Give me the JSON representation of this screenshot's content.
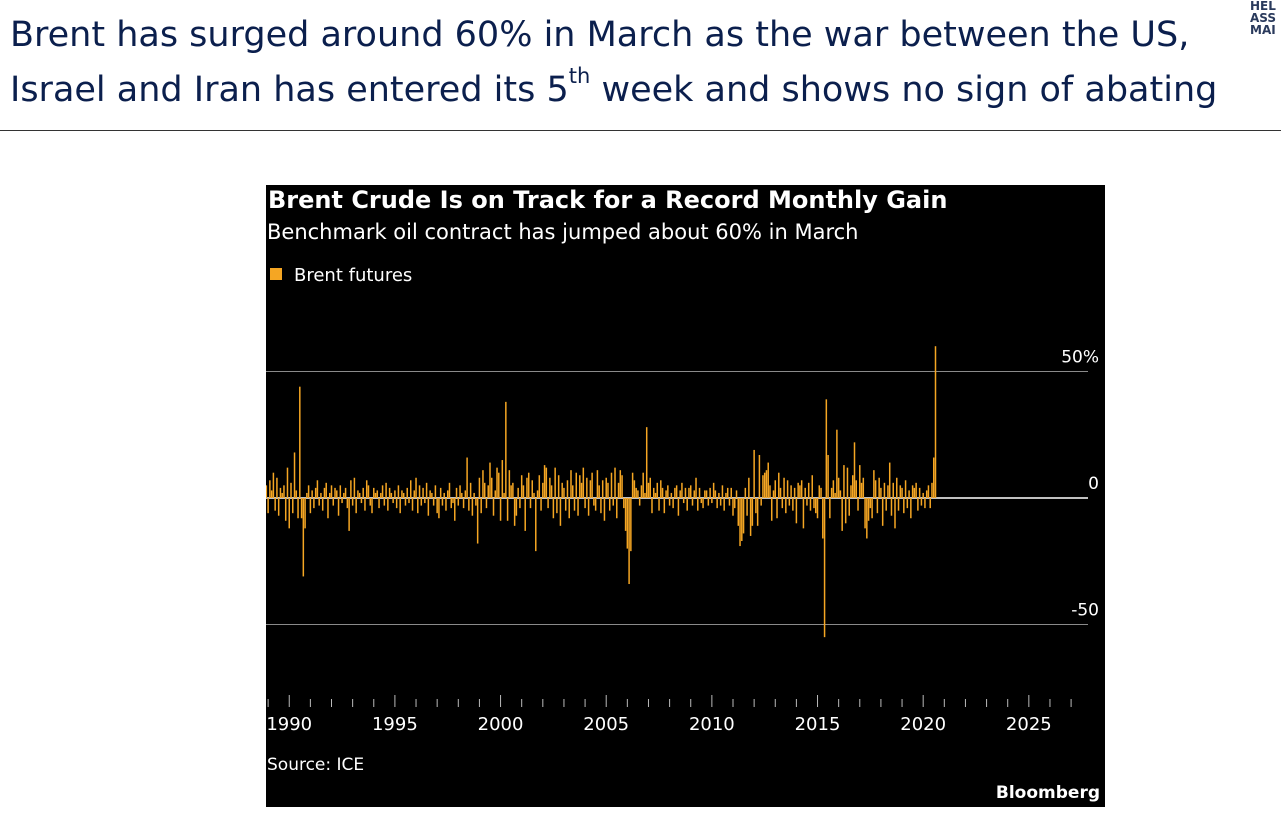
{
  "headline": {
    "line1": "Brent has surged around 60% in March as the war between the US,",
    "line2_pre": "Israel and Iran has entered its 5",
    "line2_sup": "th",
    "line2_post": " week and shows no sign of abating"
  },
  "logo": {
    "lines": [
      "HEL",
      "ASS",
      "MAI"
    ]
  },
  "colors": {
    "bars": "#f5a623",
    "background": "#000000",
    "text": "#ffffff",
    "headline": "#0b1f4d"
  },
  "chart_data": {
    "type": "bar",
    "title": "Brent Crude Is on Track for a Record Monthly Gain",
    "subtitle": "Benchmark oil contract has jumped about 60% in March",
    "legend": "Brent futures",
    "source": "Source: ICE",
    "brand": "Bloomberg",
    "ylabel": "",
    "xlabel": "",
    "ylim": [
      -80,
      60
    ],
    "xlim": [
      1988.9,
      2027.8
    ],
    "y_ticks": [
      {
        "value": 50,
        "label": "50%"
      },
      {
        "value": 0,
        "label": "0"
      },
      {
        "value": -50,
        "label": "-50"
      }
    ],
    "x_ticks": [
      "1990",
      "1995",
      "2000",
      "2005",
      "2010",
      "2015",
      "2020",
      "2025"
    ],
    "grid": true,
    "legend_position": "top-left",
    "series": [
      {
        "name": "Brent futures",
        "x_start": 1988.75,
        "x_step": 0.0833333,
        "values": [
          -16,
          9,
          5,
          -6,
          7,
          3,
          10,
          -5,
          8,
          -7,
          4,
          2,
          5,
          -9,
          12,
          -12,
          6,
          -6,
          18,
          3,
          -8,
          44,
          -8,
          -31,
          -12,
          2,
          5,
          -6,
          3,
          -4,
          4,
          7,
          -3,
          2,
          -5,
          4,
          6,
          -8,
          2,
          5,
          -3,
          4,
          3,
          -7,
          5,
          -2,
          2,
          4,
          -4,
          -13,
          7,
          -3,
          8,
          -6,
          3,
          2,
          -2,
          4,
          -5,
          7,
          5,
          -3,
          -6,
          4,
          2,
          3,
          -4,
          2,
          5,
          -3,
          6,
          -5,
          4,
          2,
          -2,
          3,
          -4,
          5,
          -6,
          3,
          2,
          -3,
          4,
          -2,
          7,
          -5,
          3,
          8,
          -6,
          5,
          -3,
          4,
          -2,
          6,
          -7,
          3,
          2,
          -3,
          5,
          -6,
          -8,
          4,
          -3,
          2,
          -5,
          3,
          6,
          -4,
          -2,
          -9,
          4,
          -3,
          5,
          2,
          -4,
          3,
          16,
          -5,
          6,
          -7,
          2,
          -3,
          -18,
          8,
          -6,
          11,
          6,
          -4,
          5,
          14,
          8,
          -7,
          3,
          12,
          10,
          -9,
          15,
          2,
          38,
          -9,
          11,
          5,
          6,
          -11,
          -7,
          4,
          -4,
          9,
          5,
          -13,
          8,
          10,
          -4,
          7,
          2,
          -21,
          3,
          9,
          -5,
          6,
          13,
          12,
          -4,
          8,
          5,
          -8,
          12,
          -6,
          9,
          -11,
          6,
          4,
          -5,
          7,
          -8,
          11,
          5,
          -5,
          10,
          -7,
          9,
          6,
          12,
          -4,
          8,
          -7,
          7,
          10,
          -3,
          -5,
          11,
          5,
          -6,
          7,
          -9,
          8,
          6,
          -5,
          10,
          -3,
          12,
          -8,
          6,
          11,
          9,
          -4,
          -13,
          -20,
          -34,
          -21,
          10,
          7,
          4,
          3,
          -3,
          5,
          10,
          2,
          28,
          6,
          8,
          -6,
          4,
          2,
          6,
          -5,
          7,
          4,
          -6,
          3,
          5,
          -3,
          2,
          -4,
          4,
          5,
          -7,
          3,
          6,
          -2,
          4,
          -5,
          4,
          5,
          -3,
          3,
          8,
          -5,
          4,
          -2,
          -4,
          3,
          3,
          -3,
          4,
          -2,
          6,
          3,
          -4,
          2,
          -3,
          5,
          -5,
          2,
          4,
          -3,
          4,
          -7,
          -4,
          3,
          -11,
          -19,
          -17,
          -14,
          4,
          -7,
          8,
          -15,
          -11,
          19,
          -6,
          -11,
          17,
          -3,
          9,
          10,
          11,
          14,
          5,
          -9,
          3,
          7,
          -8,
          10,
          4,
          -4,
          8,
          -6,
          7,
          -3,
          5,
          -5,
          4,
          -10,
          6,
          5,
          7,
          -12,
          4,
          -3,
          6,
          -5,
          9,
          -4,
          -6,
          -8,
          5,
          4,
          -16,
          -55,
          39,
          17,
          -8,
          4,
          7,
          2,
          27,
          8,
          3,
          -13,
          13,
          -10,
          12,
          -7,
          5,
          9,
          22,
          7,
          -5,
          13,
          6,
          8,
          -12,
          -16,
          -9,
          -4,
          -8,
          11,
          7,
          -6,
          8,
          4,
          -11,
          6,
          -5,
          5,
          14,
          -7,
          6,
          -12,
          8,
          -5,
          5,
          4,
          -6,
          7,
          -4,
          3,
          -8,
          5,
          4,
          6,
          -5,
          4,
          -3,
          2,
          -4,
          3,
          5,
          -4,
          6,
          16,
          60
        ]
      }
    ]
  }
}
